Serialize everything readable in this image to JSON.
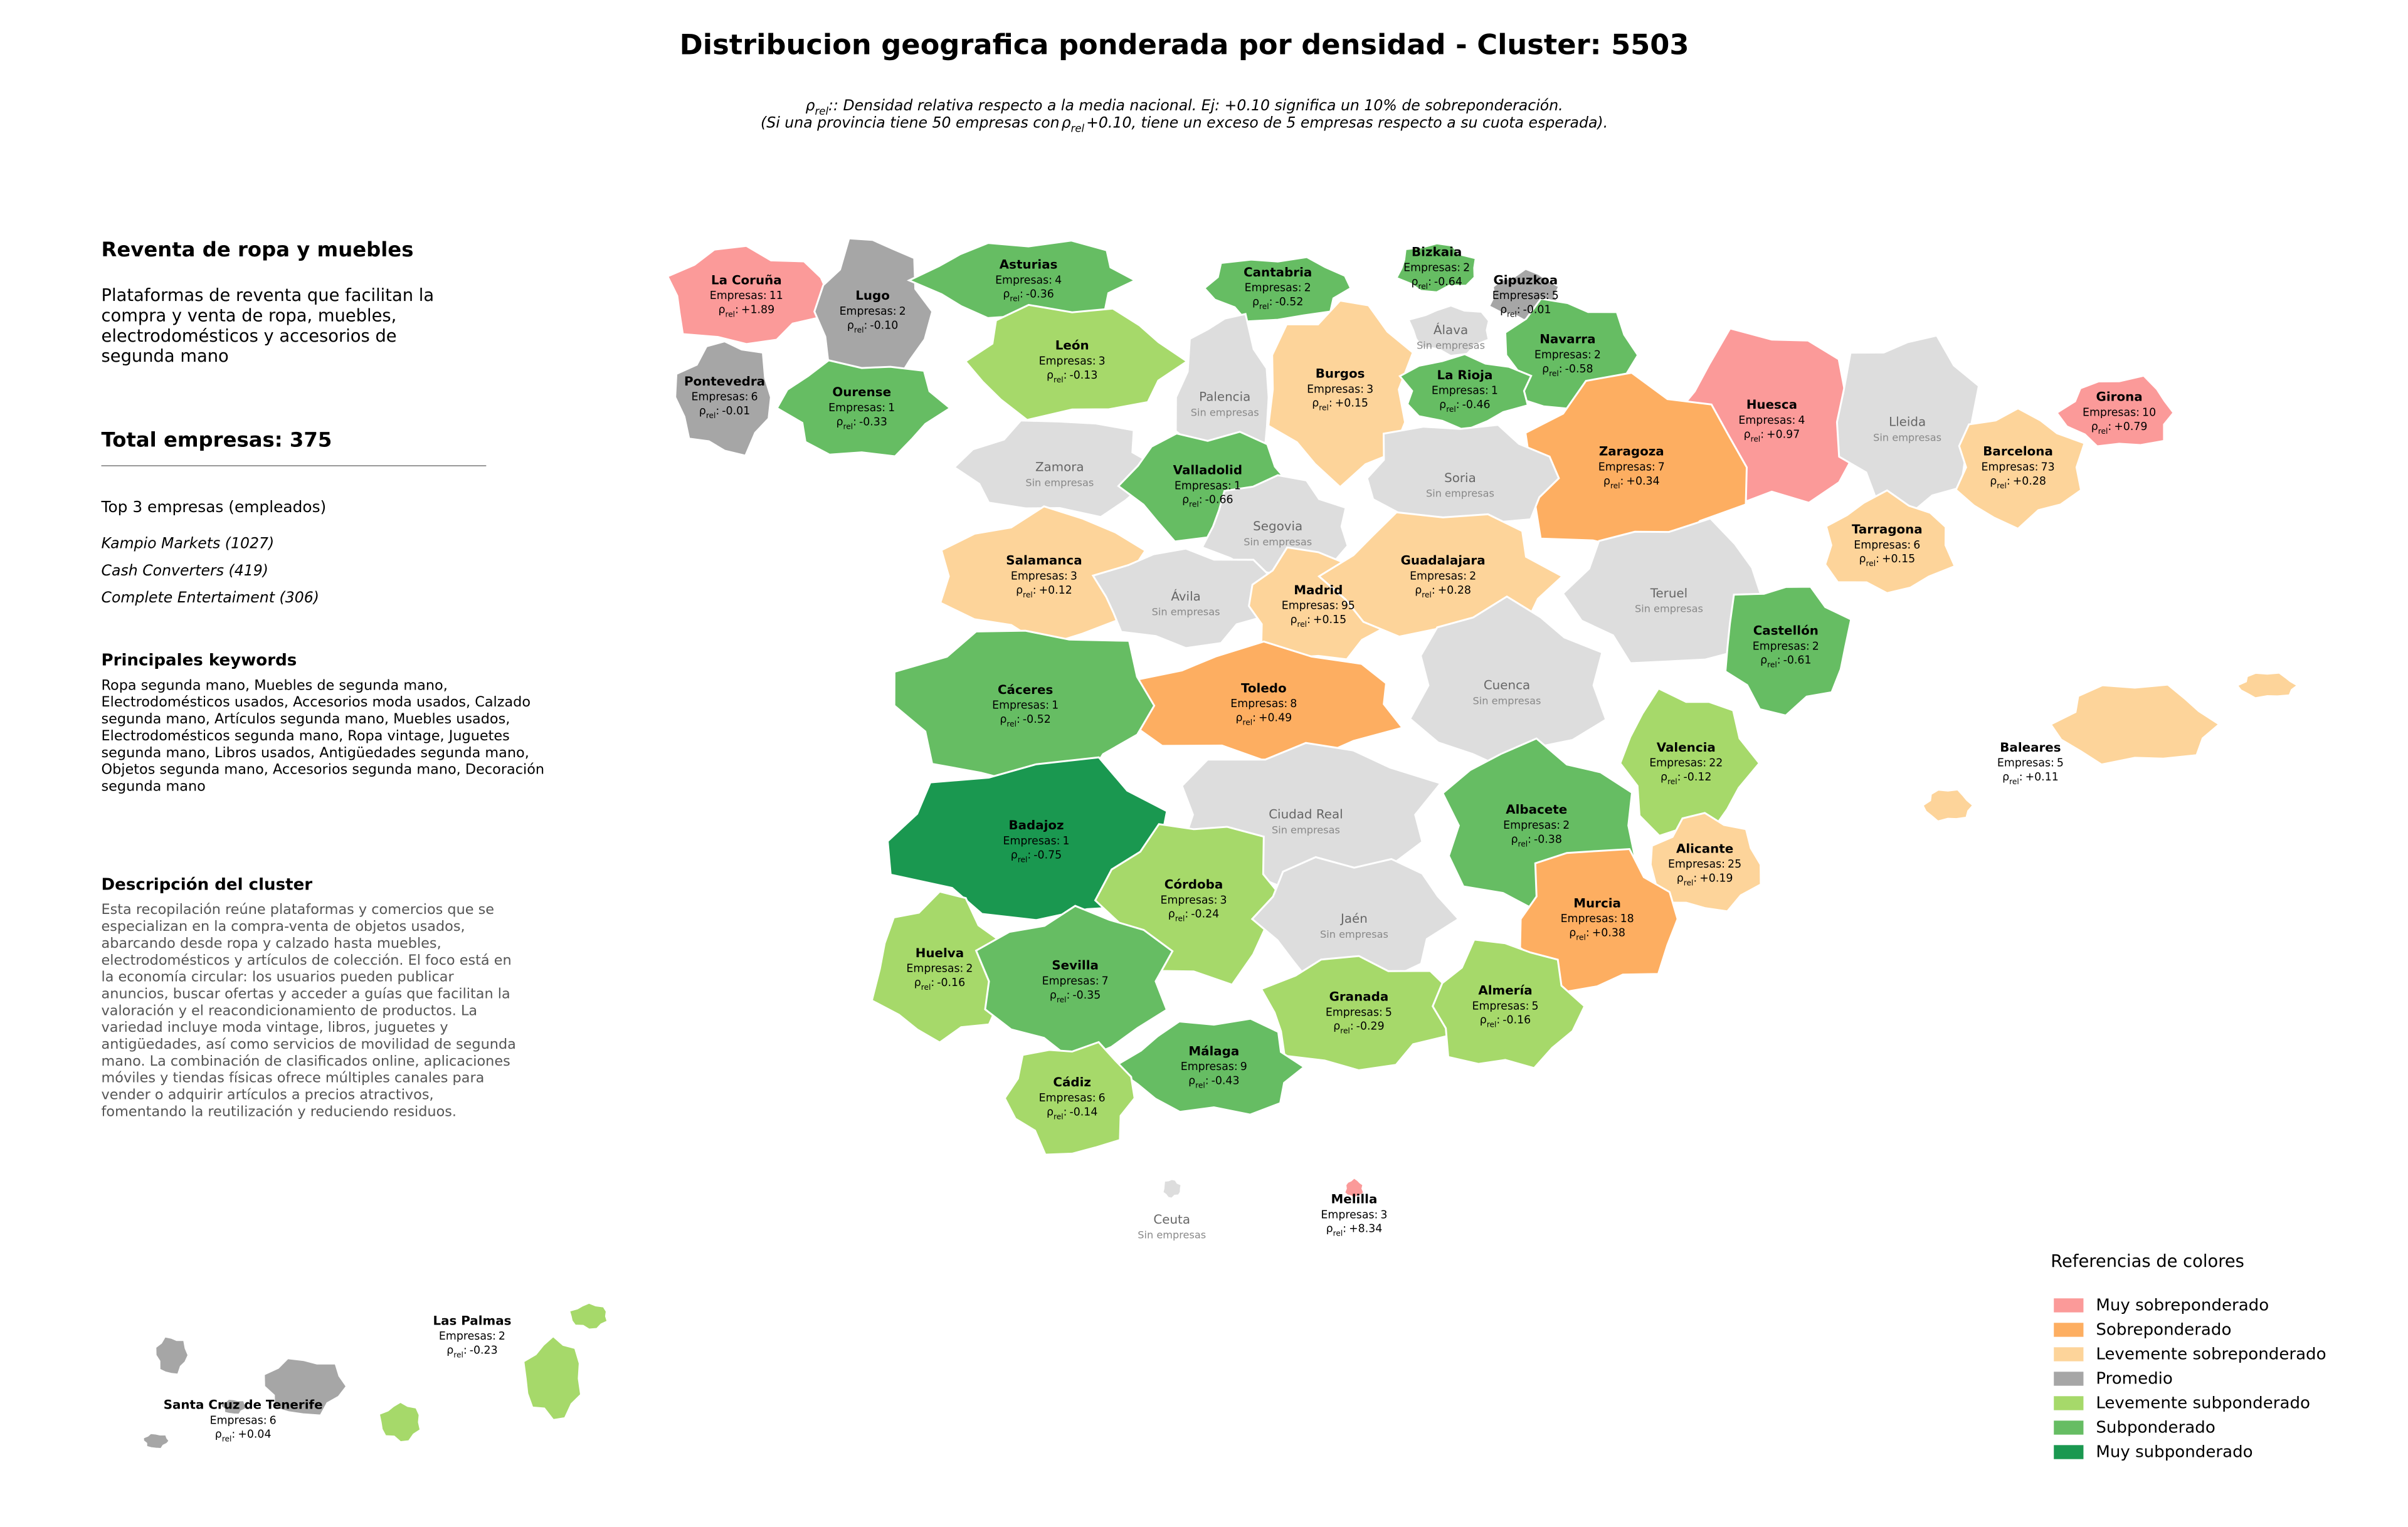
{
  "header": {
    "title": "Distribucion geografica ponderada por densidad - Cluster: 5503",
    "rho_symbol": "ρ",
    "rho_sub": "rel",
    "rho_sep": ":",
    "note_line1": ": Densidad relativa respecto a la media nacional. Ej: +0.10 significa un 10% de sobreponderación.",
    "note_line2_pre": "(Si una provincia tiene 50 empresas con",
    "note_line2_post": "+0.10, tiene un exceso de 5 empresas respecto a su cuota esperada)."
  },
  "sidebar": {
    "heading": "Reventa de ropa y muebles",
    "description": [
      "Plataformas de reventa que facilitan la",
      "compra y venta de ropa, muebles,",
      "electrodomésticos y accesorios de",
      "segunda mano"
    ],
    "total": "Total empresas: 375",
    "top_heading": "Top 3 empresas (empleados)",
    "top": [
      "Kampio Markets (1027)",
      "Cash Converters (419)",
      "Complete Entertaiment (306)"
    ],
    "keywords_heading": "Principales keywords",
    "keywords": [
      "Ropa segunda mano, Muebles de segunda mano,",
      "Electrodomésticos usados, Accesorios moda usados, Calzado",
      "segunda mano, Artículos segunda mano, Muebles usados,",
      "Electrodomésticos segunda mano, Ropa vintage, Juguetes",
      "segunda mano, Libros usados, Antigüedades segunda mano,",
      "Objetos segunda mano, Accesorios segunda mano, Decoración",
      "segunda mano"
    ],
    "cluster_heading": "Descripción del cluster",
    "cluster_description": [
      "Esta recopilación reúne plataformas y comercios que se",
      "especializan en la compra-venta de objetos usados,",
      "abarcando desde ropa y calzado hasta muebles,",
      "electrodomésticos y artículos de colección. El foco está en",
      "la economía circular: los usuarios pueden publicar",
      "anuncios, buscar ofertas y acceder a guías que facilitan la",
      "valoración y el reacondicionamiento de productos. La",
      "variedad incluye moda vintage, libros, juguetes y",
      "antigüedades, así como servicios de movilidad de segunda",
      "mano. La combinación de clasificados online, aplicaciones",
      "móviles y tiendas físicas ofrece múltiples canales para",
      "vender o adquirir artículos a precios atractivos,",
      "fomentando la reutilización y reduciendo residuos."
    ]
  },
  "map": {
    "companies_label": "Empresas:",
    "no_companies_label": "Sin empresas",
    "no_companies_color": "#dddddd",
    "legend": {
      "title": "Referencias de colores",
      "items": [
        {
          "name": "Muy sobreponderado",
          "color": "#fb9a99"
        },
        {
          "name": "Sobreponderado",
          "color": "#fdae61"
        },
        {
          "name": "Levemente sobreponderado",
          "color": "#fdd49a"
        },
        {
          "name": "Promedio",
          "color": "#a6a6a6"
        },
        {
          "name": "Levemente subponderado",
          "color": "#a6d96a"
        },
        {
          "name": "Subponderado",
          "color": "#66bd63"
        },
        {
          "name": "Muy subponderado",
          "color": "#1a9850"
        }
      ]
    },
    "provinces": [
      {
        "name": "La Coruña",
        "companies": 11,
        "rho": "+1.89",
        "category": 0
      },
      {
        "name": "Lugo",
        "companies": 2,
        "rho": "-0.10",
        "category": 3
      },
      {
        "name": "Asturias",
        "companies": 4,
        "rho": "-0.36",
        "category": 5
      },
      {
        "name": "Cantabria",
        "companies": 2,
        "rho": "-0.52",
        "category": 5
      },
      {
        "name": "Bizkaia",
        "companies": 2,
        "rho": "-0.64",
        "category": 5
      },
      {
        "name": "Gipuzkoa",
        "companies": 5,
        "rho": "-0.01",
        "category": 3
      },
      {
        "name": "Álava"
      },
      {
        "name": "Navarra",
        "companies": 2,
        "rho": "-0.58",
        "category": 5
      },
      {
        "name": "Huesca",
        "companies": 4,
        "rho": "+0.97",
        "category": 0
      },
      {
        "name": "Girona",
        "companies": 10,
        "rho": "+0.79",
        "category": 0
      },
      {
        "name": "Lleida"
      },
      {
        "name": "Barcelona",
        "companies": 73,
        "rho": "+0.28",
        "category": 2
      },
      {
        "name": "Tarragona",
        "companies": 6,
        "rho": "+0.15",
        "category": 2
      },
      {
        "name": "Pontevedra",
        "companies": 6,
        "rho": "-0.01",
        "category": 3
      },
      {
        "name": "Ourense",
        "companies": 1,
        "rho": "-0.33",
        "category": 5
      },
      {
        "name": "León",
        "companies": 3,
        "rho": "-0.13",
        "category": 4
      },
      {
        "name": "Palencia"
      },
      {
        "name": "Burgos",
        "companies": 3,
        "rho": "+0.15",
        "category": 2
      },
      {
        "name": "La Rioja",
        "companies": 1,
        "rho": "-0.46",
        "category": 5
      },
      {
        "name": "Zaragoza",
        "companies": 7,
        "rho": "+0.34",
        "category": 1
      },
      {
        "name": "Zamora"
      },
      {
        "name": "Valladolid",
        "companies": 1,
        "rho": "-0.66",
        "category": 5
      },
      {
        "name": "Soria"
      },
      {
        "name": "Segovia"
      },
      {
        "name": "Salamanca",
        "companies": 3,
        "rho": "+0.12",
        "category": 2
      },
      {
        "name": "Ávila"
      },
      {
        "name": "Madrid",
        "companies": 95,
        "rho": "+0.15",
        "category": 2
      },
      {
        "name": "Guadalajara",
        "companies": 2,
        "rho": "+0.28",
        "category": 2
      },
      {
        "name": "Teruel"
      },
      {
        "name": "Castellón",
        "companies": 2,
        "rho": "-0.61",
        "category": 5
      },
      {
        "name": "Cuenca"
      },
      {
        "name": "Toledo",
        "companies": 8,
        "rho": "+0.49",
        "category": 1
      },
      {
        "name": "Cáceres",
        "companies": 1,
        "rho": "-0.52",
        "category": 5
      },
      {
        "name": "Valencia",
        "companies": 22,
        "rho": "-0.12",
        "category": 4
      },
      {
        "name": "Baleares",
        "companies": 5,
        "rho": "+0.11",
        "category": 2
      },
      {
        "name": "Badajoz",
        "companies": 1,
        "rho": "-0.75",
        "category": 6
      },
      {
        "name": "Ciudad Real"
      },
      {
        "name": "Albacete",
        "companies": 2,
        "rho": "-0.38",
        "category": 5
      },
      {
        "name": "Alicante",
        "companies": 25,
        "rho": "+0.19",
        "category": 2
      },
      {
        "name": "Córdoba",
        "companies": 3,
        "rho": "-0.24",
        "category": 4
      },
      {
        "name": "Jaén"
      },
      {
        "name": "Murcia",
        "companies": 18,
        "rho": "+0.38",
        "category": 1
      },
      {
        "name": "Huelva",
        "companies": 2,
        "rho": "-0.16",
        "category": 4
      },
      {
        "name": "Sevilla",
        "companies": 7,
        "rho": "-0.35",
        "category": 5
      },
      {
        "name": "Granada",
        "companies": 5,
        "rho": "-0.29",
        "category": 4
      },
      {
        "name": "Almería",
        "companies": 5,
        "rho": "-0.16",
        "category": 4
      },
      {
        "name": "Málaga",
        "companies": 9,
        "rho": "-0.43",
        "category": 5
      },
      {
        "name": "Cádiz",
        "companies": 6,
        "rho": "-0.14",
        "category": 4
      },
      {
        "name": "Ceuta"
      },
      {
        "name": "Melilla",
        "companies": 3,
        "rho": "+8.34",
        "category": 0
      },
      {
        "name": "Las Palmas",
        "companies": 2,
        "rho": "-0.23",
        "category": 4
      },
      {
        "name": "Santa Cruz de Tenerife",
        "companies": 6,
        "rho": "+0.04",
        "category": 3
      }
    ]
  }
}
